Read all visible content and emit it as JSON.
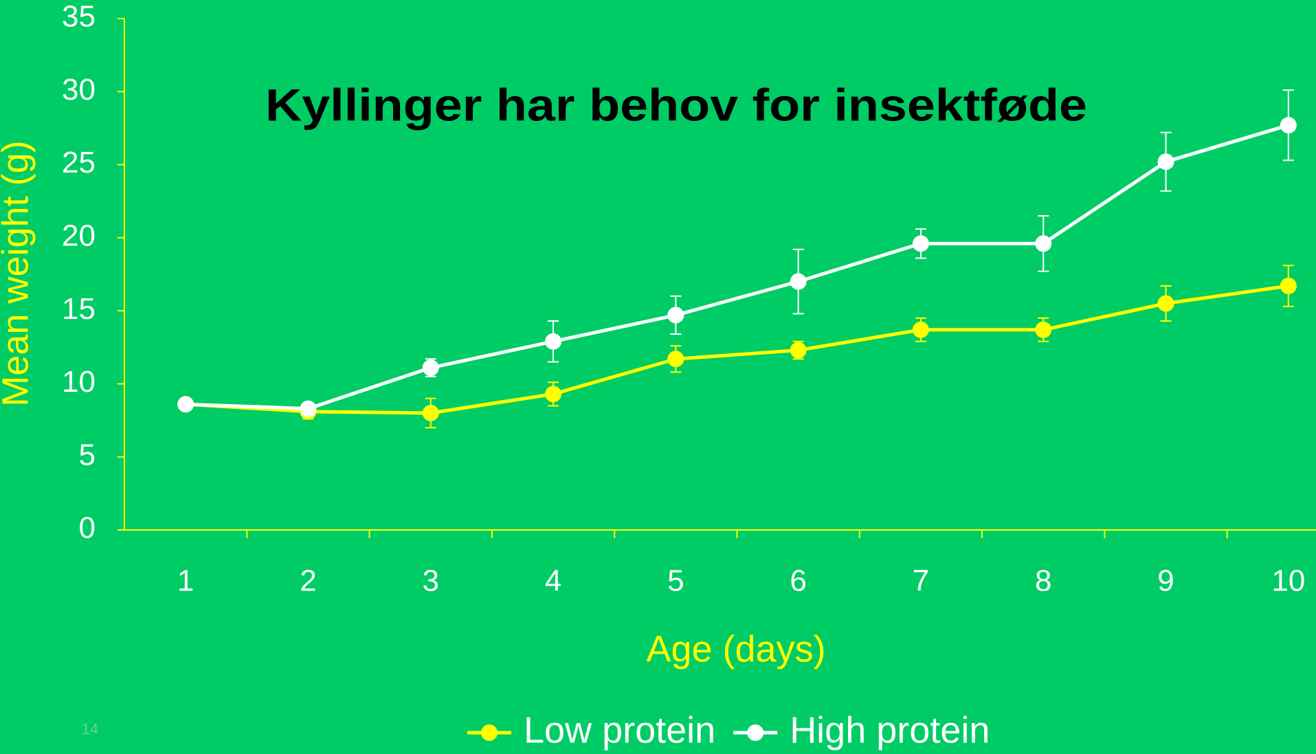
{
  "chart_data": {
    "type": "line",
    "title": "Kyllinger har behov for insektføde",
    "x_label": "Age (days)",
    "y_label": "Mean weight (g)",
    "categories": [
      "1",
      "2",
      "3",
      "4",
      "5",
      "6",
      "7",
      "8",
      "9",
      "10"
    ],
    "series": [
      {
        "name": "Low protein",
        "color": "#ffff00",
        "values": [
          8.6,
          8.1,
          8.0,
          9.3,
          11.7,
          12.3,
          13.7,
          13.7,
          15.5,
          16.7
        ],
        "errors": [
          0.3,
          0.5,
          1.0,
          0.8,
          0.9,
          0.6,
          0.8,
          0.8,
          1.2,
          1.4
        ]
      },
      {
        "name": "High protein",
        "color": "#ffffff",
        "values": [
          8.6,
          8.3,
          11.1,
          12.9,
          14.7,
          17.0,
          19.6,
          19.6,
          25.2,
          27.7
        ],
        "errors": [
          0.2,
          0.3,
          0.6,
          1.4,
          1.3,
          2.2,
          1.0,
          1.9,
          2.0,
          2.4
        ]
      }
    ],
    "ylim": [
      0,
      35
    ],
    "yticks": [
      0,
      5,
      10,
      15,
      20,
      25,
      30,
      35
    ],
    "axis_color": "#ffff00",
    "background": "#00cc66",
    "legend": "bottom"
  },
  "page_number": "14"
}
